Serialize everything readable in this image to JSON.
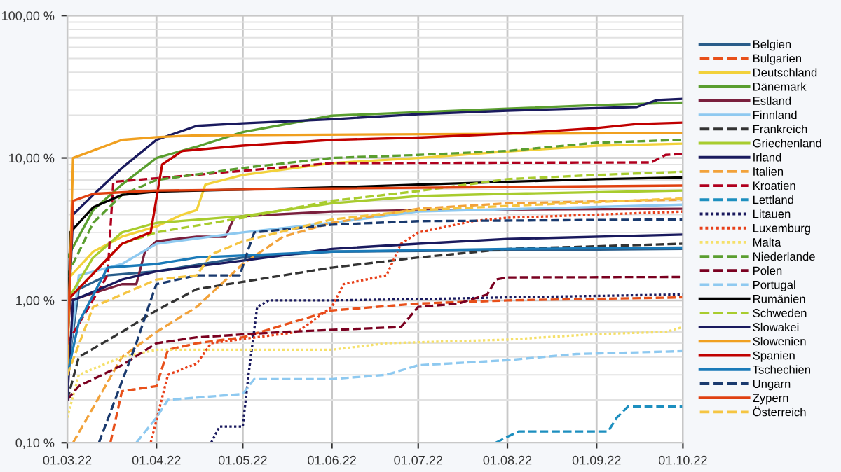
{
  "chart_data": {
    "type": "line",
    "log": "y",
    "grid": true,
    "legend": "right",
    "ylim": [
      0.1,
      100
    ],
    "yticks": [
      {
        "value": 0.1,
        "label": "0,10 %"
      },
      {
        "value": 1,
        "label": "1,00 %"
      },
      {
        "value": 10,
        "label": "10,00 %"
      },
      {
        "value": 100,
        "label": "100,00 %"
      }
    ],
    "xlim": [
      "2022-03-01",
      "2022-10-01"
    ],
    "xticks": [
      {
        "value": "2022-03-01",
        "label": "01.03.22"
      },
      {
        "value": "2022-04-01",
        "label": "01.04.22"
      },
      {
        "value": "2022-05-01",
        "label": "01.05.22"
      },
      {
        "value": "2022-06-01",
        "label": "01.06.22"
      },
      {
        "value": "2022-07-01",
        "label": "01.07.22"
      },
      {
        "value": "2022-08-01",
        "label": "01.08.22"
      },
      {
        "value": "2022-09-01",
        "label": "01.09.22"
      },
      {
        "value": "2022-10-01",
        "label": "01.10.22"
      }
    ],
    "series": [
      {
        "name": "Belgien",
        "color": "#2a5d8a",
        "line_style": "solid",
        "x": [
          "2022-03-01",
          "2022-03-05",
          "2022-03-15",
          "2022-04-01",
          "2022-05-01",
          "2022-06-01",
          "2022-08-01",
          "2022-10-01"
        ],
        "values": [
          0.3,
          1.2,
          1.5,
          1.6,
          2.0,
          2.2,
          2.25,
          2.3
        ]
      },
      {
        "name": "Bulgarien",
        "color": "#e8501a",
        "line_style": "dashed",
        "x": [
          "2022-03-16",
          "2022-03-20",
          "2022-04-01",
          "2022-04-05",
          "2022-04-15",
          "2022-05-01",
          "2022-06-01",
          "2022-07-01",
          "2022-08-01",
          "2022-10-01"
        ],
        "values": [
          0.1,
          0.23,
          0.25,
          0.45,
          0.5,
          0.55,
          0.85,
          0.95,
          1.0,
          1.05
        ]
      },
      {
        "name": "Deutschland",
        "color": "#f2d13a",
        "line_style": "solid",
        "x": [
          "2022-03-01",
          "2022-03-10",
          "2022-03-20",
          "2022-04-01",
          "2022-04-10",
          "2022-04-15",
          "2022-04-18",
          "2022-05-01",
          "2022-06-01",
          "2022-07-01",
          "2022-08-01",
          "2022-09-01",
          "2022-10-01"
        ],
        "values": [
          1.4,
          2.2,
          2.8,
          3.3,
          4.0,
          4.3,
          6.5,
          7.6,
          9.2,
          10,
          11.1,
          12.2,
          12.6
        ]
      },
      {
        "name": "Dänemark",
        "color": "#5a9e2f",
        "line_style": "solid",
        "x": [
          "2022-03-01",
          "2022-03-10",
          "2022-03-20",
          "2022-04-01",
          "2022-04-15",
          "2022-05-01",
          "2022-06-01",
          "2022-07-01",
          "2022-08-01",
          "2022-09-01",
          "2022-10-01"
        ],
        "values": [
          2,
          4.3,
          6.5,
          10,
          12,
          15.2,
          19.8,
          21,
          22.2,
          23.5,
          24.5
        ]
      },
      {
        "name": "Estland",
        "color": "#7a1f3d",
        "line_style": "solid",
        "x": [
          "2022-03-01",
          "2022-03-02",
          "2022-03-20",
          "2022-03-25",
          "2022-03-28",
          "2022-04-01",
          "2022-04-15",
          "2022-04-25",
          "2022-04-28",
          "2022-05-01",
          "2022-06-01",
          "2022-07-01",
          "2022-10-01"
        ],
        "values": [
          0.5,
          1,
          1.3,
          1.3,
          2.2,
          2.6,
          2.8,
          2.8,
          3.8,
          3.9,
          4.2,
          4.3,
          4.4
        ]
      },
      {
        "name": "Finnland",
        "color": "#8ec9f0",
        "line_style": "solid",
        "x": [
          "2022-03-01",
          "2022-03-05",
          "2022-03-20",
          "2022-04-01",
          "2022-05-01",
          "2022-06-01",
          "2022-07-01",
          "2022-10-01"
        ],
        "values": [
          0.3,
          1.5,
          1.8,
          2.5,
          3,
          3.5,
          4.2,
          4.7
        ]
      },
      {
        "name": "Frankreich",
        "color": "#333333",
        "line_style": "dashed",
        "x": [
          "2022-03-01",
          "2022-03-05",
          "2022-03-20",
          "2022-04-01",
          "2022-04-15",
          "2022-05-01",
          "2022-06-01",
          "2022-07-01",
          "2022-08-01",
          "2022-10-01"
        ],
        "values": [
          0.2,
          0.4,
          0.6,
          0.85,
          1.2,
          1.35,
          1.7,
          2.0,
          2.3,
          2.5
        ]
      },
      {
        "name": "Griechenland",
        "color": "#a8cc2e",
        "line_style": "solid",
        "x": [
          "2022-03-01",
          "2022-03-10",
          "2022-03-20",
          "2022-04-01",
          "2022-05-01",
          "2022-06-01",
          "2022-07-01",
          "2022-08-01",
          "2022-10-01"
        ],
        "values": [
          1,
          2,
          3,
          3.5,
          3.9,
          4.8,
          5.4,
          5.6,
          5.9
        ]
      },
      {
        "name": "Irland",
        "color": "#1a1a5e",
        "line_style": "solid",
        "x": [
          "2022-03-01",
          "2022-03-03",
          "2022-03-10",
          "2022-03-20",
          "2022-04-01",
          "2022-04-15",
          "2022-05-01",
          "2022-06-01",
          "2022-07-01",
          "2022-08-01",
          "2022-09-01",
          "2022-09-15",
          "2022-09-22",
          "2022-10-01"
        ],
        "values": [
          0.5,
          4,
          5.5,
          8.5,
          13.4,
          16.8,
          17.5,
          18.7,
          20.3,
          21.5,
          22.4,
          22.8,
          25.5,
          26
        ]
      },
      {
        "name": "Italien",
        "color": "#f2a23a",
        "line_style": "dashed",
        "x": [
          "2022-03-03",
          "2022-03-20",
          "2022-04-01",
          "2022-04-15",
          "2022-05-01",
          "2022-05-15",
          "2022-06-01",
          "2022-07-01",
          "2022-08-01",
          "2022-10-01"
        ],
        "values": [
          0.1,
          0.4,
          0.6,
          0.9,
          1.8,
          2.8,
          3.5,
          4.4,
          4.8,
          5.1
        ]
      },
      {
        "name": "Kroatien",
        "color": "#b0001e",
        "line_style": "dashed",
        "x": [
          "2022-03-01",
          "2022-03-15",
          "2022-03-17",
          "2022-04-01",
          "2022-06-01",
          "2022-09-20",
          "2022-09-25",
          "2022-10-01"
        ],
        "values": [
          0.5,
          1.5,
          6.8,
          7.2,
          9.2,
          9.3,
          10.5,
          10.7
        ]
      },
      {
        "name": "Lettland",
        "color": "#1d8fbf",
        "line_style": "dashed",
        "x": [
          "2022-07-28",
          "2022-08-01",
          "2022-08-05",
          "2022-09-05",
          "2022-09-08",
          "2022-09-12",
          "2022-10-01"
        ],
        "values": [
          0.1,
          0.11,
          0.12,
          0.12,
          0.15,
          0.18,
          0.18
        ]
      },
      {
        "name": "Litauen",
        "color": "#1a1a5e",
        "line_style": "dotted",
        "x": [
          "2022-04-20",
          "2022-04-23",
          "2022-05-01",
          "2022-05-03",
          "2022-05-06",
          "2022-05-10",
          "2022-06-01",
          "2022-07-01",
          "2022-08-01",
          "2022-10-01"
        ],
        "values": [
          0.1,
          0.13,
          0.13,
          0.3,
          0.9,
          1.0,
          1.0,
          1.02,
          1.05,
          1.1
        ]
      },
      {
        "name": "Luxemburg",
        "color": "#e8401a",
        "line_style": "dotted",
        "x": [
          "2022-03-30",
          "2022-04-05",
          "2022-04-15",
          "2022-04-20",
          "2022-05-20",
          "2022-06-01",
          "2022-06-05",
          "2022-06-20",
          "2022-06-25",
          "2022-07-01",
          "2022-07-20",
          "2022-08-01",
          "2022-10-01"
        ],
        "values": [
          0.1,
          0.3,
          0.36,
          0.5,
          0.6,
          0.9,
          1.3,
          1.5,
          2.5,
          3,
          3.6,
          3.8,
          4.2
        ]
      },
      {
        "name": "Malta",
        "color": "#f5e06a",
        "line_style": "dotted",
        "x": [
          "2022-03-01",
          "2022-03-05",
          "2022-03-20",
          "2022-04-01",
          "2022-06-01",
          "2022-06-20",
          "2022-08-01",
          "2022-09-01",
          "2022-09-25",
          "2022-10-01"
        ],
        "values": [
          0.15,
          0.3,
          0.4,
          0.45,
          0.45,
          0.5,
          0.53,
          0.58,
          0.6,
          0.65
        ]
      },
      {
        "name": "Niederlande",
        "color": "#5a9e2f",
        "line_style": "dashed",
        "x": [
          "2022-03-01",
          "2022-03-10",
          "2022-03-20",
          "2022-04-01",
          "2022-05-01",
          "2022-06-01",
          "2022-07-01",
          "2022-08-01",
          "2022-09-01",
          "2022-10-01"
        ],
        "values": [
          1.5,
          3.5,
          5.5,
          7,
          8.5,
          10,
          10.5,
          11.2,
          12.8,
          13.4
        ]
      },
      {
        "name": "Polen",
        "color": "#7a0020",
        "line_style": "dashed",
        "x": [
          "2022-03-01",
          "2022-03-05",
          "2022-03-20",
          "2022-04-01",
          "2022-04-15",
          "2022-05-15",
          "2022-06-25",
          "2022-07-01",
          "2022-07-15",
          "2022-07-25",
          "2022-07-28",
          "2022-08-01",
          "2022-10-01"
        ],
        "values": [
          0.2,
          0.25,
          0.35,
          0.5,
          0.55,
          0.6,
          0.65,
          0.9,
          0.95,
          1.1,
          1.4,
          1.45,
          1.46
        ]
      },
      {
        "name": "Portugal",
        "color": "#8ec9f0",
        "line_style": "dashed",
        "x": [
          "2022-03-25",
          "2022-04-01",
          "2022-04-05",
          "2022-05-01",
          "2022-05-05",
          "2022-06-01",
          "2022-06-20",
          "2022-07-01",
          "2022-08-01",
          "2022-08-25",
          "2022-10-01"
        ],
        "values": [
          0.1,
          0.15,
          0.2,
          0.22,
          0.28,
          0.28,
          0.3,
          0.35,
          0.38,
          0.42,
          0.44
        ]
      },
      {
        "name": "Rumänien",
        "color": "#000000",
        "line_style": "solid",
        "x": [
          "2022-03-01",
          "2022-03-02",
          "2022-03-10",
          "2022-03-20",
          "2022-04-01",
          "2022-06-01",
          "2022-07-01",
          "2022-08-01",
          "2022-09-01",
          "2022-10-01"
        ],
        "values": [
          0.3,
          3,
          4.5,
          5.5,
          5.8,
          6.2,
          6.5,
          6.8,
          7.1,
          7.3
        ]
      },
      {
        "name": "Schweden",
        "color": "#a8cc2e",
        "line_style": "dashed",
        "x": [
          "2022-03-01",
          "2022-03-20",
          "2022-04-01",
          "2022-05-01",
          "2022-06-01",
          "2022-07-01",
          "2022-08-01",
          "2022-09-01",
          "2022-10-01"
        ],
        "values": [
          1,
          2.5,
          3,
          3.8,
          5,
          5.85,
          7.1,
          7.6,
          8
        ]
      },
      {
        "name": "Slowakei",
        "color": "#1a1a5e",
        "line_style": "solid",
        "x": [
          "2022-03-01",
          "2022-03-03",
          "2022-03-20",
          "2022-04-01",
          "2022-05-01",
          "2022-06-01",
          "2022-07-01",
          "2022-08-01",
          "2022-10-01"
        ],
        "values": [
          0.2,
          1,
          1.4,
          1.6,
          1.9,
          2.3,
          2.5,
          2.7,
          2.9
        ]
      },
      {
        "name": "Slowenien",
        "color": "#f0a020",
        "line_style": "solid",
        "x": [
          "2022-03-01",
          "2022-03-03",
          "2022-03-20",
          "2022-04-01",
          "2022-04-15",
          "2022-10-01"
        ],
        "values": [
          0.3,
          10,
          13.4,
          14,
          14.4,
          15
        ]
      },
      {
        "name": "Spanien",
        "color": "#c00000",
        "line_style": "solid",
        "x": [
          "2022-03-01",
          "2022-03-20",
          "2022-03-30",
          "2022-04-03",
          "2022-04-10",
          "2022-05-01",
          "2022-06-01",
          "2022-07-01",
          "2022-08-01",
          "2022-09-01",
          "2022-09-15",
          "2022-10-01"
        ],
        "values": [
          1,
          2.5,
          3,
          9,
          11.2,
          12.2,
          13.4,
          13.9,
          14.8,
          16.2,
          17.3,
          17.7
        ]
      },
      {
        "name": "Tschechien",
        "color": "#1a7ab8",
        "line_style": "solid",
        "x": [
          "2022-03-01",
          "2022-03-05",
          "2022-03-15",
          "2022-04-01",
          "2022-04-15",
          "2022-06-01",
          "2022-08-01",
          "2022-10-01"
        ],
        "values": [
          0.3,
          0.7,
          1.7,
          1.8,
          2.0,
          2.2,
          2.3,
          2.35
        ]
      },
      {
        "name": "Ungarn",
        "color": "#1a3a6e",
        "line_style": "dashed",
        "x": [
          "2022-03-12",
          "2022-03-25",
          "2022-03-30",
          "2022-04-01",
          "2022-04-15",
          "2022-04-30",
          "2022-05-03",
          "2022-05-05",
          "2022-06-01",
          "2022-07-01",
          "2022-10-01"
        ],
        "values": [
          0.1,
          0.5,
          1.0,
          1.3,
          1.5,
          1.5,
          2.3,
          3.0,
          3.4,
          3.6,
          3.7
        ]
      },
      {
        "name": "Zypern",
        "color": "#e04010",
        "line_style": "solid",
        "x": [
          "2022-03-01",
          "2022-03-03",
          "2022-03-10",
          "2022-04-01",
          "2022-06-01",
          "2022-10-01"
        ],
        "values": [
          0.5,
          5,
          5.6,
          5.9,
          6.1,
          6.4
        ]
      },
      {
        "name": "Österreich",
        "color": "#f5c542",
        "line_style": "dashed",
        "x": [
          "2022-03-01",
          "2022-03-10",
          "2022-03-20",
          "2022-04-01",
          "2022-04-15",
          "2022-04-20",
          "2022-05-01",
          "2022-06-01",
          "2022-07-01",
          "2022-08-01",
          "2022-10-01"
        ],
        "values": [
          0.3,
          0.9,
          1.1,
          1.4,
          1.5,
          2.1,
          2.6,
          3.7,
          4.3,
          4.6,
          5.2
        ]
      }
    ]
  }
}
